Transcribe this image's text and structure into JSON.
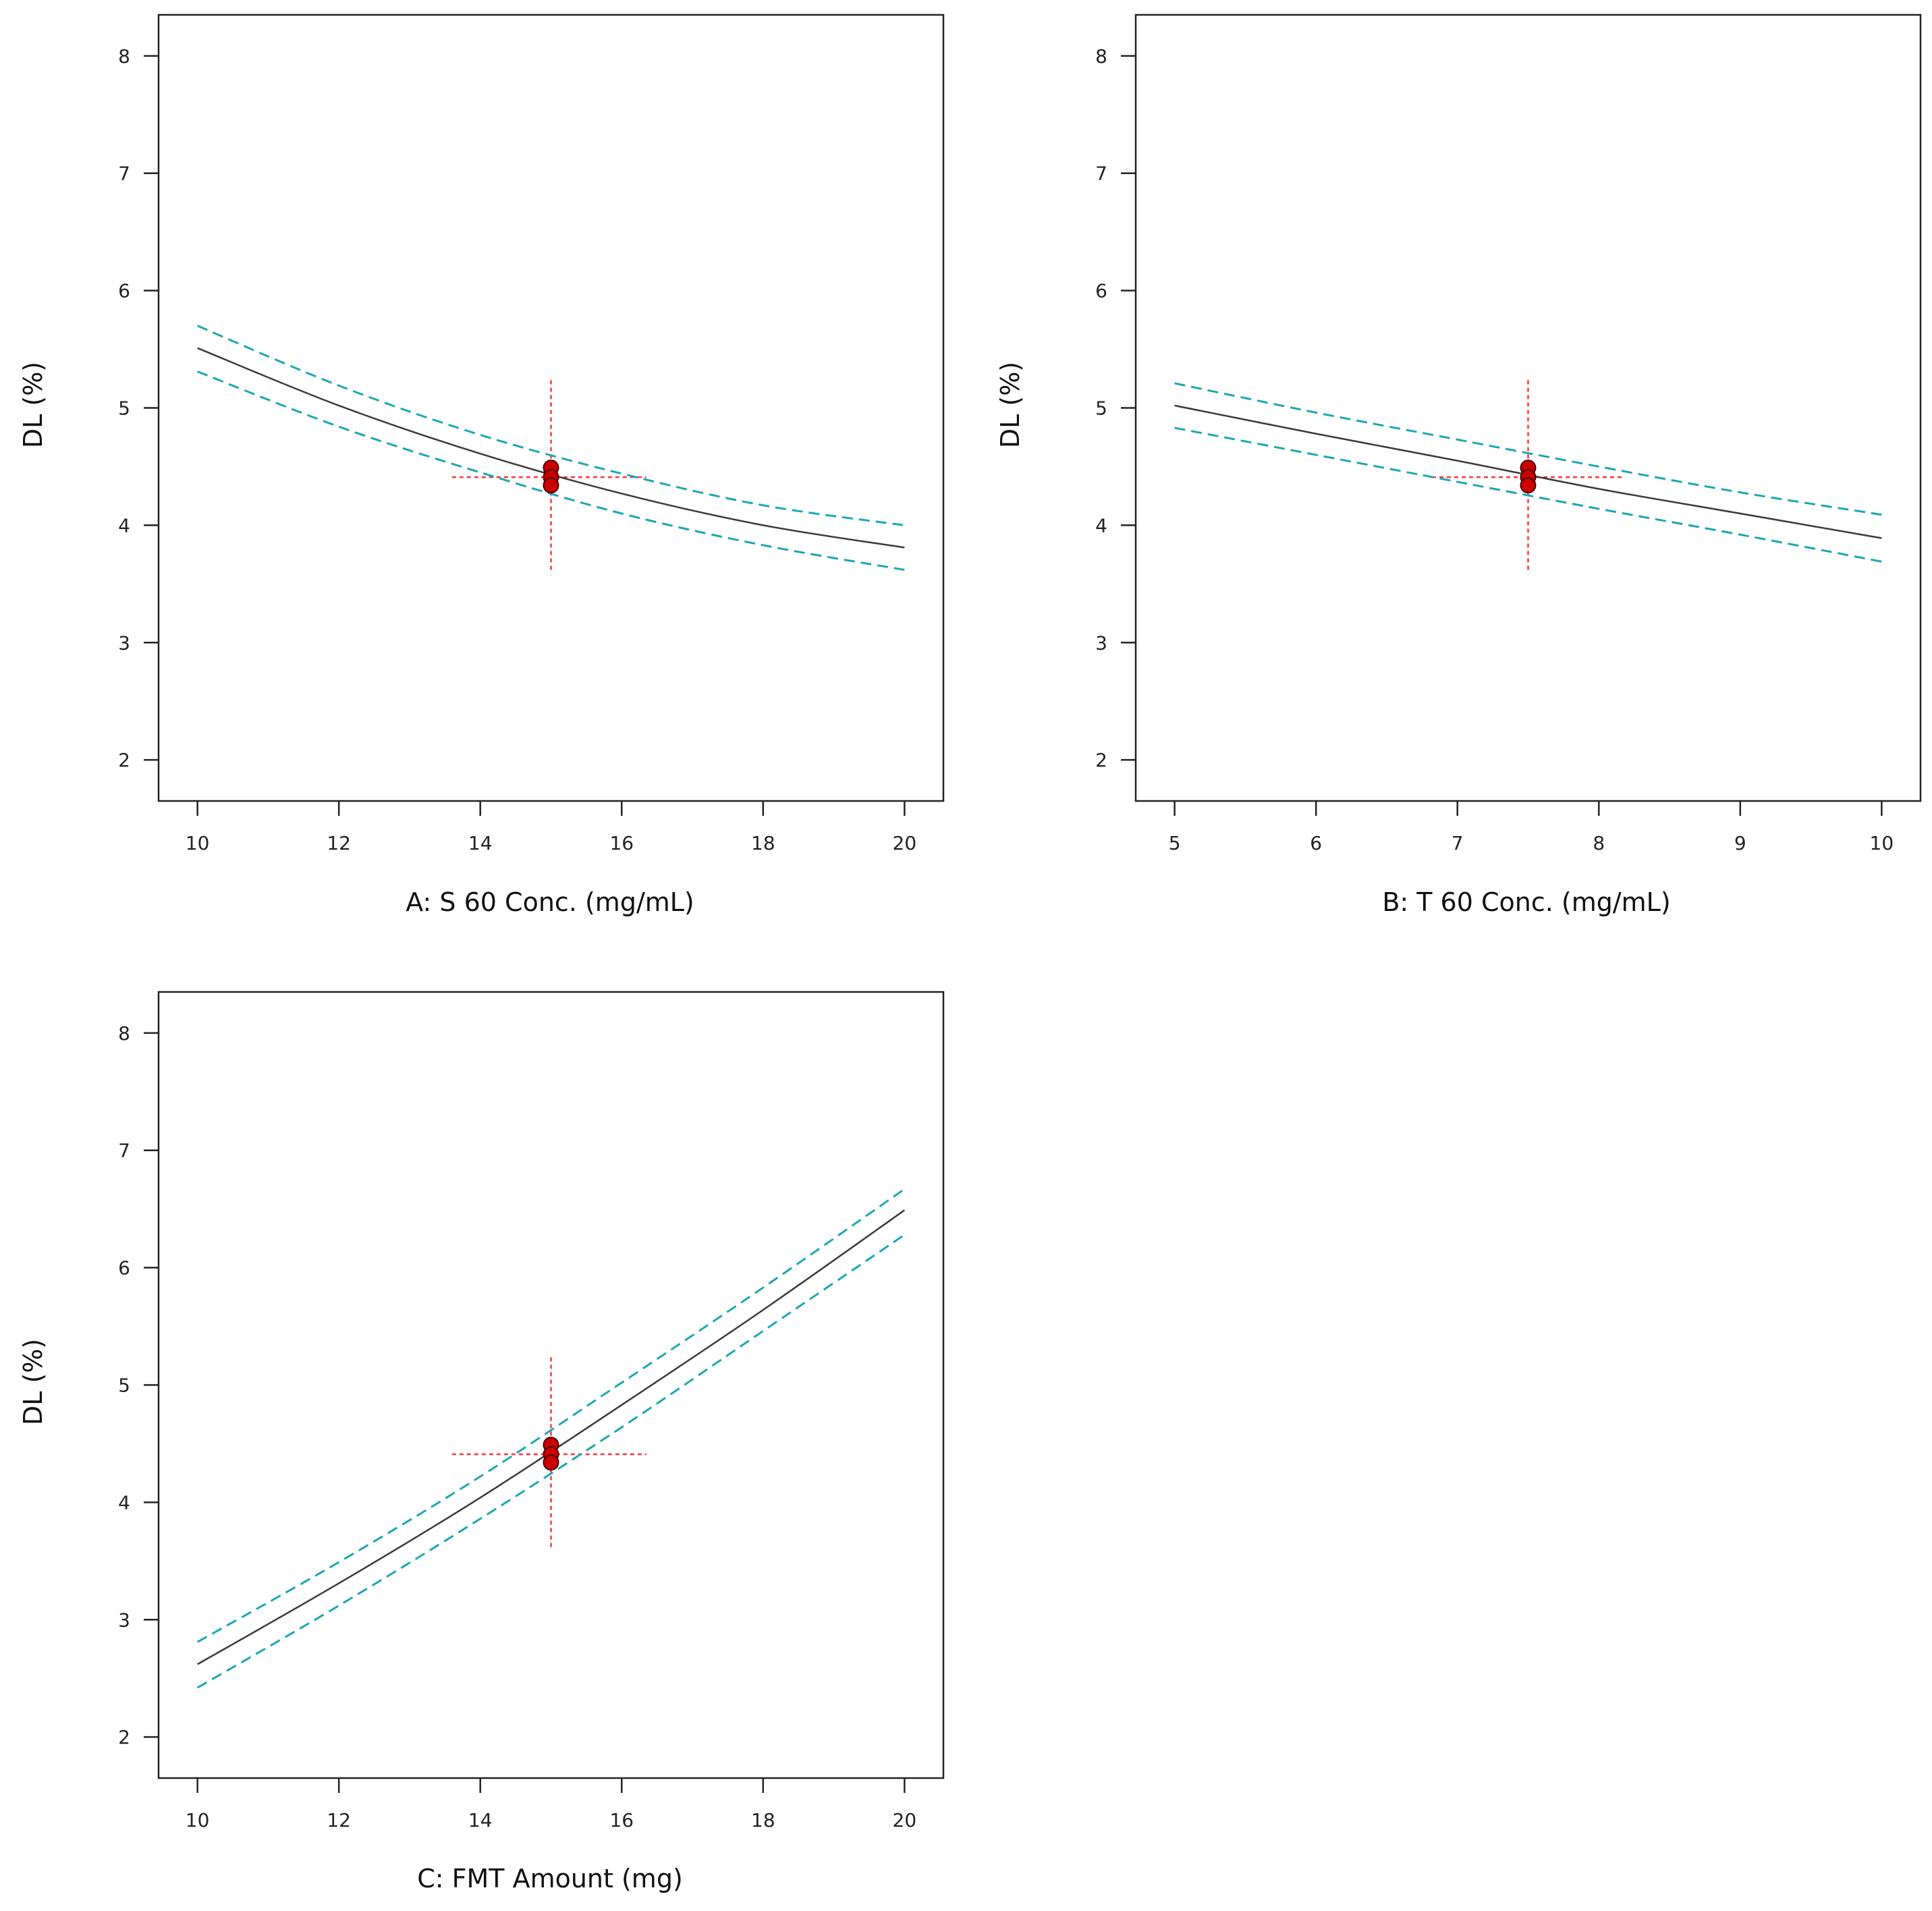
{
  "colors": {
    "frame": "#222222",
    "fit_line": "#3a3a3a",
    "confidence_band": "#1aa7b3",
    "reference_line": "#ff3333",
    "point_fill": "#cc0000",
    "point_stroke": "#440000"
  },
  "chart_data": [
    {
      "id": "panel-a",
      "type": "line",
      "title": "",
      "xlabel": "A: S 60 Conc. (mg/mL)",
      "ylabel": "DL (%)",
      "xlim": [
        9.45,
        20.55
      ],
      "ylim": [
        1.65,
        8.35
      ],
      "xticks": [
        10,
        12,
        14,
        16,
        18,
        20
      ],
      "yticks": [
        2,
        3,
        4,
        5,
        6,
        7,
        8
      ],
      "grid": false,
      "series": [
        {
          "name": "fit",
          "style": "solid",
          "x": [
            10,
            12,
            14,
            16,
            18,
            20
          ],
          "y": [
            5.51,
            5.02,
            4.61,
            4.27,
            4.0,
            3.81
          ]
        },
        {
          "name": "upper-95-ci",
          "style": "dashed",
          "x": [
            10,
            12,
            14,
            16,
            18,
            20
          ],
          "y": [
            5.7,
            5.19,
            4.77,
            4.44,
            4.17,
            4.0
          ]
        },
        {
          "name": "lower-95-ci",
          "style": "dashed",
          "x": [
            10,
            12,
            14,
            16,
            18,
            20
          ],
          "y": [
            5.31,
            4.84,
            4.45,
            4.1,
            3.83,
            3.62
          ]
        }
      ],
      "reference": {
        "x": 15,
        "y": 4.41,
        "x_span": [
          13.6,
          16.35
        ],
        "y_span": [
          3.62,
          5.25
        ]
      },
      "points": [
        {
          "x": 15,
          "y": 4.49
        },
        {
          "x": 15,
          "y": 4.41
        },
        {
          "x": 15,
          "y": 4.34
        }
      ]
    },
    {
      "id": "panel-b",
      "type": "line",
      "title": "",
      "xlabel": "B: T 60 Conc. (mg/mL)",
      "ylabel": "DL (%)",
      "xlim": [
        4.725,
        10.275
      ],
      "ylim": [
        1.65,
        8.35
      ],
      "xticks": [
        5,
        6,
        7,
        8,
        9,
        10
      ],
      "yticks": [
        2,
        3,
        4,
        5,
        6,
        7,
        8
      ],
      "grid": false,
      "series": [
        {
          "name": "fit",
          "style": "solid",
          "x": [
            5,
            6,
            7,
            8,
            9,
            10
          ],
          "y": [
            5.02,
            4.78,
            4.55,
            4.31,
            4.1,
            3.89
          ]
        },
        {
          "name": "upper-95-ci",
          "style": "dashed",
          "x": [
            5,
            6,
            7,
            8,
            9,
            10
          ],
          "y": [
            5.21,
            4.96,
            4.73,
            4.5,
            4.28,
            4.09
          ]
        },
        {
          "name": "lower-95-ci",
          "style": "dashed",
          "x": [
            5,
            6,
            7,
            8,
            9,
            10
          ],
          "y": [
            4.83,
            4.6,
            4.37,
            4.14,
            3.92,
            3.69
          ]
        }
      ],
      "reference": {
        "x": 7.5,
        "y": 4.41,
        "x_span": [
          6.82,
          8.18
        ],
        "y_span": [
          3.62,
          5.25
        ]
      },
      "points": [
        {
          "x": 7.5,
          "y": 4.49
        },
        {
          "x": 7.5,
          "y": 4.41
        },
        {
          "x": 7.5,
          "y": 4.34
        }
      ]
    },
    {
      "id": "panel-c",
      "type": "line",
      "title": "",
      "xlabel": "C: FMT Amount (mg)",
      "ylabel": "DL (%)",
      "xlim": [
        9.45,
        20.55
      ],
      "ylim": [
        1.65,
        8.35
      ],
      "xticks": [
        10,
        12,
        14,
        16,
        18,
        20
      ],
      "yticks": [
        2,
        3,
        4,
        5,
        6,
        7,
        8
      ],
      "grid": false,
      "series": [
        {
          "name": "fit",
          "style": "solid",
          "x": [
            10,
            12,
            14,
            16,
            18,
            20
          ],
          "y": [
            2.62,
            3.31,
            4.04,
            4.83,
            5.64,
            6.49
          ]
        },
        {
          "name": "upper-95-ci",
          "style": "dashed",
          "x": [
            10,
            12,
            14,
            16,
            18,
            20
          ],
          "y": [
            2.81,
            3.49,
            4.22,
            5.02,
            5.83,
            6.67
          ]
        },
        {
          "name": "lower-95-ci",
          "style": "dashed",
          "x": [
            10,
            12,
            14,
            16,
            18,
            20
          ],
          "y": [
            2.42,
            3.12,
            3.86,
            4.64,
            5.46,
            6.28
          ]
        }
      ],
      "reference": {
        "x": 15,
        "y": 4.41,
        "x_span": [
          13.6,
          16.35
        ],
        "y_span": [
          3.62,
          5.25
        ]
      },
      "points": [
        {
          "x": 15,
          "y": 4.49
        },
        {
          "x": 15,
          "y": 4.41
        },
        {
          "x": 15,
          "y": 4.34
        }
      ]
    }
  ]
}
